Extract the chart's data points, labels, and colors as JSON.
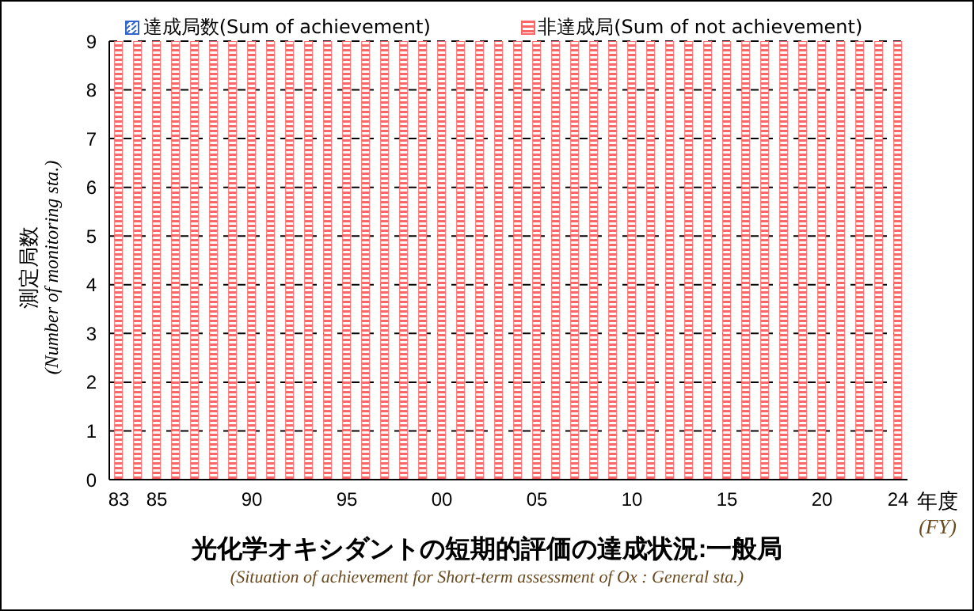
{
  "chart_data": {
    "type": "bar",
    "stacked": true,
    "title": "光化学オキシダントの短期的評価の達成状況:一般局",
    "subtitle": "(Situation of achievement for Short-term assessment of Ox : General sta.)",
    "xlabel": "年度 (FY)",
    "ylabel": "測定局数 (Number of monitoring sta.)",
    "categories": [
      "83",
      null,
      "85",
      null,
      null,
      null,
      null,
      "90",
      null,
      null,
      null,
      null,
      "95",
      null,
      null,
      null,
      null,
      "00",
      null,
      null,
      null,
      null,
      "05",
      null,
      null,
      null,
      null,
      "10",
      null,
      null,
      null,
      null,
      "15",
      null,
      null,
      null,
      null,
      "20",
      null,
      null,
      null,
      "24"
    ],
    "series": [
      {
        "name": "達成局数(Sum of achievement)",
        "color": "#3366cc",
        "values": [
          0,
          0,
          0,
          0,
          0,
          0,
          0,
          0,
          0,
          0,
          0,
          0,
          0,
          0,
          0,
          0,
          0,
          0,
          0,
          0,
          0,
          0,
          0,
          0,
          0,
          0,
          0,
          0,
          0,
          0,
          0,
          0,
          0,
          0,
          0,
          0,
          0,
          0,
          0,
          0,
          0,
          0
        ]
      },
      {
        "name": "非達成局(Sum of not achievement)",
        "color": "#ff6666",
        "values": [
          9,
          9,
          9,
          9,
          9,
          9,
          9,
          9,
          9,
          9,
          9,
          9,
          9,
          9,
          9,
          9,
          9,
          9,
          9,
          9,
          9,
          9,
          9,
          9,
          9,
          9,
          9,
          9,
          9,
          9,
          9,
          9,
          9,
          9,
          9,
          9,
          9,
          9,
          9,
          9,
          9,
          9
        ]
      }
    ],
    "ylim": [
      0,
      9
    ],
    "yticks": [
      0,
      1,
      2,
      3,
      4,
      5,
      6,
      7,
      8,
      9
    ],
    "grid": "y",
    "legend": "top"
  }
}
